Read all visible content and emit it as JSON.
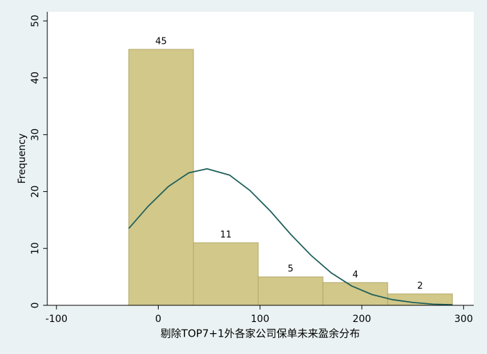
{
  "chart_data": {
    "type": "histogram",
    "x_label": "剔除TOP7+1外各家公司保单未来盈余分布",
    "y_label": "Frequency",
    "bins": [
      -29,
      34.6,
      98.2,
      161.8,
      225.4,
      289
    ],
    "values": [
      45,
      11,
      5,
      4,
      2
    ],
    "color": "#d1c88a",
    "edge_color": "#b3a968",
    "density": {
      "color": "#1f5f5a",
      "x": [
        -29,
        -10,
        10,
        30,
        48,
        70,
        90,
        110,
        130,
        150,
        170,
        190,
        210,
        230,
        250,
        270,
        289
      ],
      "y": [
        13.5,
        17.4,
        20.9,
        23.3,
        24.0,
        22.9,
        20.2,
        16.6,
        12.5,
        8.8,
        5.7,
        3.4,
        1.9,
        1.0,
        0.5,
        0.2,
        0.1
      ]
    },
    "xlim": [
      -109,
      310
    ],
    "xticks": [
      -100,
      0,
      100,
      200,
      300
    ],
    "ylim": [
      0,
      51.6
    ],
    "yticks": [
      0,
      10,
      20,
      30,
      40,
      50
    ],
    "grid": false
  }
}
